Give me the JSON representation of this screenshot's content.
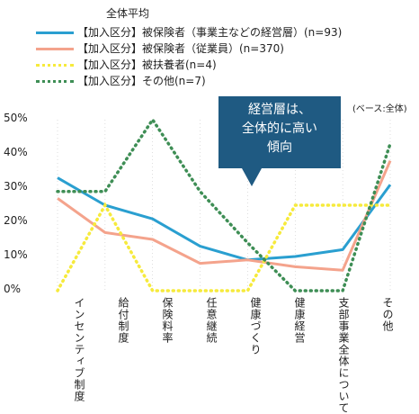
{
  "legend": {
    "title": "全体平均",
    "items": [
      {
        "label": "【加入区分】被保険者（事業主などの経営層）(n=93)",
        "color": "#2a9fd0",
        "style": "solid"
      },
      {
        "label": "【加入区分】被保険者（従業員）(n=370)",
        "color": "#f4a38c",
        "style": "solid"
      },
      {
        "label": "【加入区分】被扶養者(n=4)",
        "color": "#f6ea3c",
        "style": "dotted"
      },
      {
        "label": "【加入区分】その他(n=7)",
        "color": "#3e8e55",
        "style": "dotted"
      }
    ]
  },
  "callout": {
    "line1": "経営層は、",
    "line2": "全体的に高い",
    "line3": "傾向"
  },
  "base_note": "(ベース:全体)",
  "chart_data": {
    "type": "line",
    "categories": [
      "インセンティブ制度",
      "給付制度",
      "保険料率",
      "任意継続",
      "健康づくり",
      "健康経営",
      "支部事業全体について",
      "その他"
    ],
    "yticks": [
      "0%",
      "10%",
      "20%",
      "30%",
      "40%",
      "50%"
    ],
    "ylim": [
      0,
      50
    ],
    "series": [
      {
        "name": "【加入区分】被保険者（事業主などの経営層）(n=93)",
        "values": [
          33,
          25,
          21,
          13,
          9,
          10,
          12,
          31
        ],
        "color": "#2a9fd0"
      },
      {
        "name": "【加入区分】被保険者（従業員）(n=370)",
        "values": [
          27,
          17,
          15,
          8,
          9,
          7,
          6,
          38
        ],
        "color": "#f4a38c"
      },
      {
        "name": "【加入区分】被扶養者(n=4)",
        "values": [
          0,
          25,
          0,
          0,
          0,
          25,
          25,
          25
        ],
        "color": "#f6ea3c"
      },
      {
        "name": "【加入区分】その他(n=7)",
        "values": [
          29,
          29,
          50,
          29,
          14,
          0,
          0,
          43
        ],
        "color": "#3e8e55"
      }
    ]
  }
}
